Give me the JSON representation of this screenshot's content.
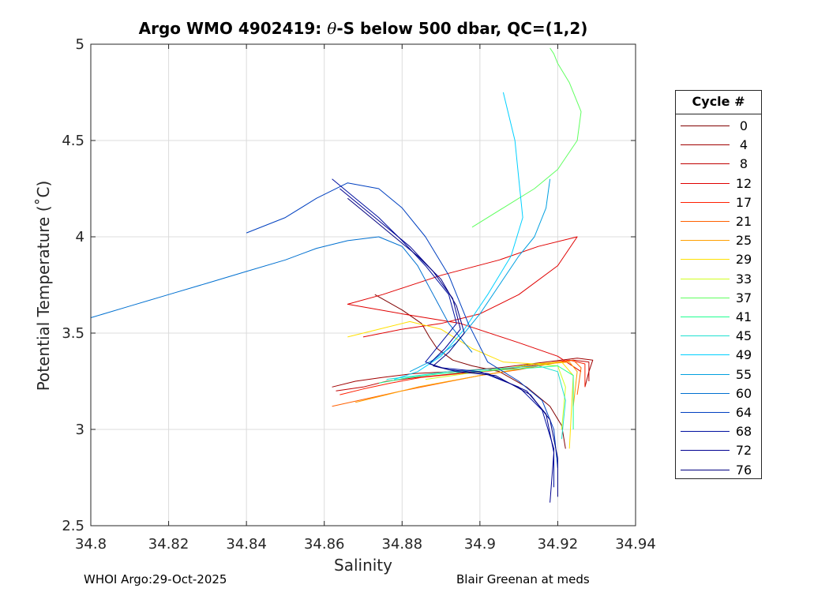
{
  "chart_data": {
    "type": "line",
    "title_prefix": "Argo WMO 4902419: ",
    "title_symbol": "θ",
    "title_suffix": "-S below 500 dbar,  QC=(1,2)",
    "xlabel": "Salinity",
    "ylabel": "Potential Temperature (˚C)",
    "xlim": [
      34.8,
      34.94
    ],
    "ylim": [
      2.5,
      5
    ],
    "xticks": [
      "34.8",
      "34.82",
      "34.84",
      "34.86",
      "34.88",
      "34.9",
      "34.92",
      "34.94"
    ],
    "yticks": [
      "2.5",
      "3",
      "3.5",
      "4",
      "4.5",
      "5"
    ],
    "grid": true,
    "legend": {
      "title": "Cycle #",
      "placement": "right, outside plot"
    },
    "series": [
      {
        "name": "0",
        "color": "#800000",
        "x": [
          34.873,
          34.88,
          34.885,
          34.887,
          34.889,
          34.893,
          34.898,
          34.905,
          34.912,
          34.918,
          34.921,
          34.922
        ],
        "y": [
          3.7,
          3.62,
          3.55,
          3.48,
          3.42,
          3.36,
          3.33,
          3.3,
          3.22,
          3.12,
          3.02,
          2.9
        ]
      },
      {
        "name": "4",
        "color": "#A00000",
        "x": [
          34.862,
          34.868,
          34.875,
          34.883,
          34.893,
          34.905,
          34.917,
          34.925,
          34.929,
          34.928,
          34.927
        ],
        "y": [
          3.22,
          3.25,
          3.27,
          3.29,
          3.3,
          3.32,
          3.35,
          3.37,
          3.36,
          3.3,
          3.22
        ]
      },
      {
        "name": "8",
        "color": "#C00000",
        "x": [
          34.863,
          34.87,
          34.876,
          34.884,
          34.894,
          34.905,
          34.916,
          34.924,
          34.928,
          34.928
        ],
        "y": [
          3.2,
          3.22,
          3.25,
          3.27,
          3.29,
          3.31,
          3.34,
          3.36,
          3.35,
          3.25
        ]
      },
      {
        "name": "12",
        "color": "#E00000",
        "x": [
          34.87,
          34.88,
          34.89,
          34.9,
          34.91,
          34.92,
          34.925,
          34.915,
          34.905,
          34.89,
          34.875,
          34.866,
          34.88,
          34.895,
          34.91,
          34.92,
          34.926
        ],
        "y": [
          3.48,
          3.52,
          3.55,
          3.6,
          3.7,
          3.85,
          4.0,
          3.95,
          3.88,
          3.8,
          3.7,
          3.65,
          3.6,
          3.55,
          3.45,
          3.38,
          3.3
        ]
      },
      {
        "name": "17",
        "color": "#FF2000",
        "x": [
          34.864,
          34.87,
          34.877,
          34.885,
          34.895,
          34.906,
          34.916,
          34.923,
          34.927,
          34.927
        ],
        "y": [
          3.18,
          3.21,
          3.24,
          3.27,
          3.29,
          3.31,
          3.34,
          3.36,
          3.34,
          3.22
        ]
      },
      {
        "name": "21",
        "color": "#FF6000",
        "x": [
          34.862,
          34.871,
          34.88,
          34.89,
          34.9,
          34.91,
          34.918,
          34.924,
          34.926,
          34.925
        ],
        "y": [
          3.12,
          3.16,
          3.2,
          3.24,
          3.28,
          3.31,
          3.34,
          3.36,
          3.32,
          3.18
        ]
      },
      {
        "name": "25",
        "color": "#FFA000",
        "x": [
          34.868,
          34.876,
          34.884,
          34.892,
          34.9,
          34.909,
          34.917,
          34.923,
          34.925,
          34.924
        ],
        "y": [
          3.14,
          3.18,
          3.22,
          3.25,
          3.28,
          3.31,
          3.34,
          3.35,
          3.3,
          3.12
        ]
      },
      {
        "name": "29",
        "color": "#FFE000",
        "x": [
          34.866,
          34.874,
          34.882,
          34.89,
          34.898,
          34.906,
          34.914,
          34.921,
          34.924,
          34.923
        ],
        "y": [
          3.48,
          3.52,
          3.56,
          3.52,
          3.42,
          3.35,
          3.34,
          3.35,
          3.28,
          2.9
        ]
      },
      {
        "name": "33",
        "color": "#D0FF20",
        "x": [
          34.886,
          34.893,
          34.9,
          34.908,
          34.914,
          34.92,
          34.922,
          34.921
        ],
        "y": [
          3.26,
          3.28,
          3.3,
          3.32,
          3.34,
          3.33,
          3.22,
          3.0
        ]
      },
      {
        "name": "37",
        "color": "#60FF60",
        "x": [
          34.898,
          34.906,
          34.914,
          34.92,
          34.925,
          34.926,
          34.923,
          34.92,
          34.919,
          34.918
        ],
        "y": [
          4.05,
          4.15,
          4.25,
          4.35,
          4.5,
          4.65,
          4.8,
          4.9,
          4.95,
          4.98
        ]
      },
      {
        "name": "41",
        "color": "#20FF90",
        "x": [
          34.874,
          34.882,
          34.89,
          34.898,
          34.906,
          34.914,
          34.92,
          34.924,
          34.924
        ],
        "y": [
          3.24,
          3.27,
          3.29,
          3.3,
          3.31,
          3.32,
          3.33,
          3.28,
          3.0
        ]
      },
      {
        "name": "45",
        "color": "#20E0D0",
        "x": [
          34.876,
          34.884,
          34.892,
          34.9,
          34.908,
          34.915,
          34.92,
          34.922,
          34.921
        ],
        "y": [
          3.26,
          3.28,
          3.3,
          3.31,
          3.32,
          3.33,
          3.3,
          3.15,
          2.95
        ]
      },
      {
        "name": "49",
        "color": "#00D0FF",
        "x": [
          34.878,
          34.884,
          34.89,
          34.896,
          34.902,
          34.908,
          34.911,
          34.91,
          34.909,
          34.906
        ],
        "y": [
          3.26,
          3.3,
          3.38,
          3.52,
          3.7,
          3.9,
          4.1,
          4.3,
          4.5,
          4.75
        ]
      },
      {
        "name": "55",
        "color": "#00A0E0",
        "x": [
          34.882,
          34.888,
          34.894,
          34.9,
          34.905,
          34.91,
          34.914,
          34.917,
          34.918
        ],
        "y": [
          3.3,
          3.36,
          3.45,
          3.6,
          3.75,
          3.9,
          4.0,
          4.15,
          4.3
        ]
      },
      {
        "name": "60",
        "color": "#0070D0",
        "x": [
          34.8,
          34.81,
          34.82,
          34.83,
          34.84,
          34.85,
          34.858,
          34.866,
          34.874,
          34.88,
          34.884,
          34.888,
          34.892,
          34.898
        ],
        "y": [
          3.58,
          3.64,
          3.7,
          3.76,
          3.82,
          3.88,
          3.94,
          3.98,
          4.0,
          3.95,
          3.85,
          3.7,
          3.55,
          3.4
        ]
      },
      {
        "name": "64",
        "color": "#0040C0",
        "x": [
          34.84,
          34.85,
          34.858,
          34.866,
          34.874,
          34.88,
          34.886,
          34.892,
          34.897,
          34.902,
          34.91,
          34.916,
          34.919,
          34.92
        ],
        "y": [
          4.02,
          4.1,
          4.2,
          4.28,
          4.25,
          4.15,
          4.0,
          3.8,
          3.55,
          3.35,
          3.25,
          3.15,
          3.0,
          2.8
        ]
      },
      {
        "name": "68",
        "color": "#0010A0",
        "x": [
          34.862,
          34.868,
          34.874,
          34.88,
          34.886,
          34.892,
          34.894,
          34.89,
          34.886,
          34.89,
          34.9,
          34.91,
          34.916,
          34.919,
          34.919
        ],
        "y": [
          4.3,
          4.2,
          4.1,
          3.98,
          3.85,
          3.7,
          3.55,
          3.45,
          3.35,
          3.32,
          3.3,
          3.22,
          3.1,
          2.9,
          2.7
        ]
      },
      {
        "name": "72",
        "color": "#000090",
        "x": [
          34.864,
          34.87,
          34.876,
          34.882,
          34.888,
          34.893,
          34.895,
          34.891,
          34.887,
          34.892,
          34.902,
          34.912,
          34.917,
          34.919,
          34.918
        ],
        "y": [
          4.25,
          4.15,
          4.05,
          3.95,
          3.82,
          3.68,
          3.52,
          3.42,
          3.34,
          3.31,
          3.29,
          3.2,
          3.08,
          2.88,
          2.62
        ]
      },
      {
        "name": "76",
        "color": "#000080",
        "x": [
          34.866,
          34.872,
          34.878,
          34.884,
          34.89,
          34.894,
          34.896,
          34.892,
          34.888,
          34.894,
          34.904,
          34.913,
          34.918,
          34.92,
          34.92
        ],
        "y": [
          4.2,
          4.1,
          4.0,
          3.9,
          3.78,
          3.64,
          3.5,
          3.4,
          3.33,
          3.3,
          3.28,
          3.18,
          3.05,
          2.85,
          2.65
        ]
      }
    ]
  },
  "footer": {
    "left": "WHOI Argo:29-Oct-2025",
    "right": "Blair Greenan at meds"
  }
}
